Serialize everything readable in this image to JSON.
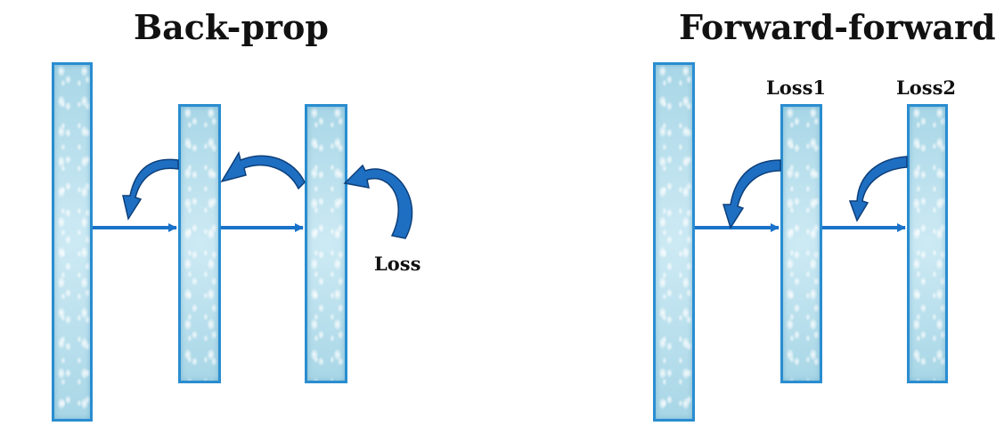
{
  "backprop": {
    "title": "Back-prop",
    "loss_label": "Loss"
  },
  "forwardforward": {
    "title": "Forward-forward",
    "loss1_label": "Loss1",
    "loss2_label": "Loss2"
  },
  "colors": {
    "layer_border": "#2a8dd0",
    "layer_fill": "#bfe3ef",
    "forward_arrow": "#1a72c9",
    "curved_arrow_fill": "#1e6fc2",
    "curved_arrow_outline": "#0d3f7a"
  }
}
